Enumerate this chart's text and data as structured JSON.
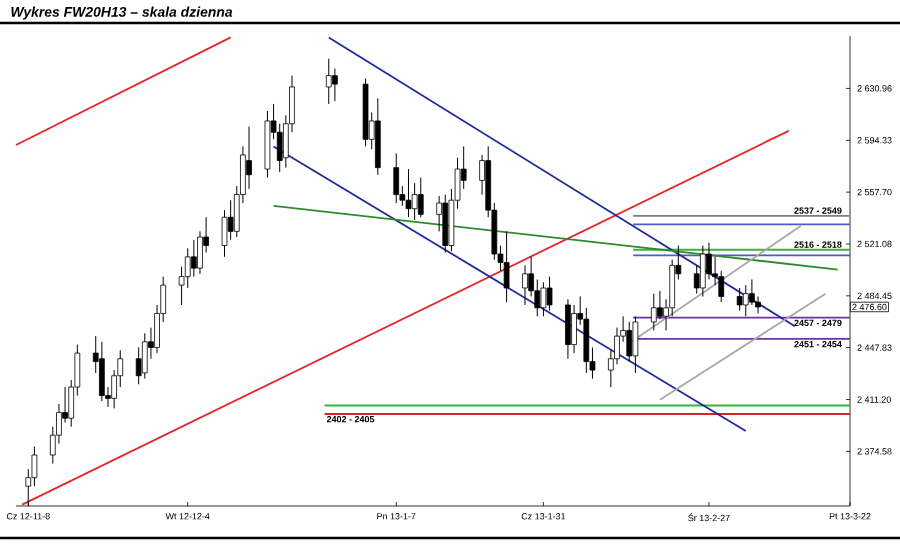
{
  "chart_data": {
    "type": "candlestick",
    "title": "Wykres FW20H13 – skala dzienna",
    "x": [
      "2012-11-08",
      "2012-11-09",
      "2012-11-12",
      "2012-11-13",
      "2012-11-14",
      "2012-11-15",
      "2012-11-16",
      "2012-11-19",
      "2012-11-20",
      "2012-11-21",
      "2012-11-22",
      "2012-11-23",
      "2012-11-26",
      "2012-11-27",
      "2012-11-28",
      "2012-11-29",
      "2012-11-30",
      "2012-12-03",
      "2012-12-04",
      "2012-12-05",
      "2012-12-06",
      "2012-12-07",
      "2012-12-10",
      "2012-12-11",
      "2012-12-12",
      "2012-12-13",
      "2012-12-14",
      "2012-12-17",
      "2012-12-18",
      "2012-12-19",
      "2012-12-20",
      "2012-12-21",
      "2012-12-27",
      "2012-12-28",
      "2013-01-02",
      "2013-01-03",
      "2013-01-04",
      "2013-01-07",
      "2013-01-08",
      "2013-01-09",
      "2013-01-10",
      "2013-01-11",
      "2013-01-14",
      "2013-01-15",
      "2013-01-16",
      "2013-01-17",
      "2013-01-18",
      "2013-01-21",
      "2013-01-22",
      "2013-01-23",
      "2013-01-24",
      "2013-01-25",
      "2013-01-28",
      "2013-01-29",
      "2013-01-30",
      "2013-01-31",
      "2013-02-01",
      "2013-02-04",
      "2013-02-05",
      "2013-02-06",
      "2013-02-07",
      "2013-02-08",
      "2013-02-11",
      "2013-02-12",
      "2013-02-13",
      "2013-02-14",
      "2013-02-15",
      "2013-02-18",
      "2013-02-19",
      "2013-02-20",
      "2013-02-21",
      "2013-02-22",
      "2013-02-25",
      "2013-02-26",
      "2013-02-27",
      "2013-02-28",
      "2013-03-01",
      "2013-03-04",
      "2013-03-05",
      "2013-03-06",
      "2013-03-07"
    ],
    "ohlc": [
      [
        2350,
        2362,
        2336,
        2356
      ],
      [
        2356,
        2378,
        2350,
        2372
      ],
      [
        2372,
        2392,
        2366,
        2386
      ],
      [
        2386,
        2408,
        2380,
        2402
      ],
      [
        2402,
        2420,
        2395,
        2398
      ],
      [
        2398,
        2425,
        2392,
        2420
      ],
      [
        2420,
        2450,
        2414,
        2444
      ],
      [
        2444,
        2456,
        2430,
        2438
      ],
      [
        2440,
        2452,
        2410,
        2414
      ],
      [
        2414,
        2420,
        2406,
        2412
      ],
      [
        2412,
        2432,
        2405,
        2428
      ],
      [
        2428,
        2446,
        2420,
        2440
      ],
      [
        2440,
        2448,
        2422,
        2428
      ],
      [
        2430,
        2458,
        2426,
        2452
      ],
      [
        2452,
        2462,
        2440,
        2448
      ],
      [
        2448,
        2478,
        2444,
        2472
      ],
      [
        2472,
        2498,
        2466,
        2492
      ],
      [
        2492,
        2505,
        2478,
        2498
      ],
      [
        2498,
        2518,
        2490,
        2512
      ],
      [
        2512,
        2524,
        2498,
        2504
      ],
      [
        2504,
        2530,
        2500,
        2526
      ],
      [
        2526,
        2540,
        2515,
        2520
      ],
      [
        2520,
        2545,
        2512,
        2540
      ],
      [
        2540,
        2552,
        2524,
        2530
      ],
      [
        2530,
        2562,
        2526,
        2556
      ],
      [
        2556,
        2590,
        2550,
        2584
      ],
      [
        2580,
        2604,
        2560,
        2570
      ],
      [
        2574,
        2615,
        2568,
        2608
      ],
      [
        2608,
        2620,
        2595,
        2600
      ],
      [
        2600,
        2606,
        2572,
        2580
      ],
      [
        2582,
        2612,
        2575,
        2606
      ],
      [
        2606,
        2640,
        2600,
        2632
      ],
      [
        2632,
        2652,
        2620,
        2640
      ],
      [
        2640,
        2645,
        2622,
        2634
      ],
      [
        2634,
        2638,
        2590,
        2595
      ],
      [
        2595,
        2614,
        2588,
        2608
      ],
      [
        2608,
        2624,
        2570,
        2575
      ],
      [
        2575,
        2585,
        2550,
        2556
      ],
      [
        2556,
        2562,
        2548,
        2552
      ],
      [
        2552,
        2574,
        2540,
        2546
      ],
      [
        2546,
        2564,
        2538,
        2556
      ],
      [
        2556,
        2568,
        2540,
        2542
      ],
      [
        2542,
        2555,
        2530,
        2550
      ],
      [
        2550,
        2556,
        2515,
        2520
      ],
      [
        2520,
        2560,
        2516,
        2552
      ],
      [
        2552,
        2582,
        2546,
        2574
      ],
      [
        2574,
        2590,
        2560,
        2566
      ],
      [
        2566,
        2584,
        2556,
        2580
      ],
      [
        2580,
        2590,
        2540,
        2545
      ],
      [
        2545,
        2550,
        2510,
        2514
      ],
      [
        2514,
        2520,
        2502,
        2508
      ],
      [
        2508,
        2530,
        2480,
        2490
      ],
      [
        2490,
        2506,
        2478,
        2500
      ],
      [
        2500,
        2512,
        2484,
        2488
      ],
      [
        2488,
        2496,
        2470,
        2476
      ],
      [
        2476,
        2494,
        2470,
        2490
      ],
      [
        2490,
        2498,
        2474,
        2478
      ],
      [
        2478,
        2482,
        2440,
        2450
      ],
      [
        2450,
        2478,
        2444,
        2472
      ],
      [
        2472,
        2484,
        2464,
        2468
      ],
      [
        2468,
        2476,
        2430,
        2438
      ],
      [
        2438,
        2448,
        2426,
        2432
      ],
      [
        2432,
        2446,
        2420,
        2440
      ],
      [
        2440,
        2462,
        2436,
        2456
      ],
      [
        2456,
        2470,
        2452,
        2460
      ],
      [
        2460,
        2466,
        2438,
        2442
      ],
      [
        2442,
        2470,
        2430,
        2466
      ],
      [
        2466,
        2486,
        2460,
        2476
      ],
      [
        2476,
        2488,
        2468,
        2470
      ],
      [
        2470,
        2482,
        2460,
        2476
      ],
      [
        2476,
        2510,
        2470,
        2506
      ],
      [
        2506,
        2520,
        2496,
        2500
      ],
      [
        2500,
        2506,
        2486,
        2490
      ],
      [
        2490,
        2520,
        2484,
        2514
      ],
      [
        2514,
        2522,
        2496,
        2500
      ],
      [
        2500,
        2512,
        2492,
        2498
      ],
      [
        2498,
        2502,
        2480,
        2484
      ],
      [
        2484,
        2490,
        2474,
        2478
      ],
      [
        2478,
        2492,
        2470,
        2486
      ],
      [
        2486,
        2496,
        2478,
        2480
      ],
      [
        2480,
        2484,
        2472,
        2476.6
      ]
    ],
    "xlim": [
      "2012-11-06",
      "2013-03-22"
    ],
    "xticks": [
      {
        "value": "2012-11-08",
        "label": "Cz 12-11-8"
      },
      {
        "value": "2012-12-04",
        "label": "Wt 12-12-4"
      },
      {
        "value": "2013-01-07",
        "label": "Pn 13-1-7"
      },
      {
        "value": "2013-01-31",
        "label": "Cz 13-1-31"
      },
      {
        "value": "2013-02-27",
        "label": "Śr 13-2-27"
      },
      {
        "value": "2013-03-22",
        "label": "Pt 13-3-22"
      }
    ],
    "ylim": [
      2336,
      2668
    ],
    "yticks": [
      {
        "value": 2374.58,
        "label": "2 374.58"
      },
      {
        "value": 2411.2,
        "label": "2 411.20"
      },
      {
        "value": 2447.83,
        "label": "2 447.83"
      },
      {
        "value": 2484.45,
        "label": "2 484.45"
      },
      {
        "value": 2521.08,
        "label": "2 521.08"
      },
      {
        "value": 2557.7,
        "label": "2 557.70"
      },
      {
        "value": 2594.33,
        "label": "2 594.33"
      },
      {
        "value": 2630.96,
        "label": "2 630.96"
      }
    ],
    "series": [
      {
        "type": "line",
        "color": "#e3262b",
        "x": [
          "2012-11-06",
          "2012-12-11"
        ],
        "values": [
          2591,
          2667
        ]
      },
      {
        "type": "line",
        "color": "#e3262b",
        "x": [
          "2012-11-07",
          "2013-03-12"
        ],
        "values": [
          2337,
          2601
        ]
      },
      {
        "type": "line",
        "color": "#1f2a9c",
        "x": [
          "2012-12-27",
          "2013-03-13"
        ],
        "values": [
          2667,
          2463
        ]
      },
      {
        "type": "line",
        "color": "#1f2a9c",
        "x": [
          "2012-12-18",
          "2013-03-05"
        ],
        "values": [
          2590,
          2389
        ]
      },
      {
        "type": "line",
        "color": "#2e8b2e",
        "x": [
          "2012-12-18",
          "2013-03-20"
        ],
        "values": [
          2548,
          2503
        ]
      },
      {
        "type": "line",
        "color": "#a8a8a8",
        "x": [
          "2013-02-14",
          "2013-03-14"
        ],
        "values": [
          2451,
          2534
        ]
      },
      {
        "type": "line",
        "color": "#a8a8a8",
        "x": [
          "2013-02-19",
          "2013-03-18"
        ],
        "values": [
          2411,
          2486
        ]
      }
    ],
    "ref_lines": [
      {
        "axis": "y",
        "value": 2541,
        "color": "#7f7f7f"
      },
      {
        "axis": "y",
        "value": 2535,
        "color": "#4a5cc8"
      },
      {
        "axis": "y",
        "value": 2517,
        "color": "#3cb043"
      },
      {
        "axis": "y",
        "value": 2513,
        "color": "#4a5cc8"
      },
      {
        "axis": "y",
        "value": 2469,
        "color": "#7030a0"
      },
      {
        "axis": "y",
        "value": 2454,
        "color": "#7030a0"
      },
      {
        "axis": "y",
        "value": 2407,
        "color": "#3cb043"
      },
      {
        "axis": "y",
        "value": 2401,
        "color": "#e02020"
      }
    ],
    "annotations": [
      "2537 - 2549",
      "2516 - 2518",
      "2457 - 2479",
      "2451 - 2454",
      "2402 - 2405",
      "2 476.60"
    ]
  }
}
